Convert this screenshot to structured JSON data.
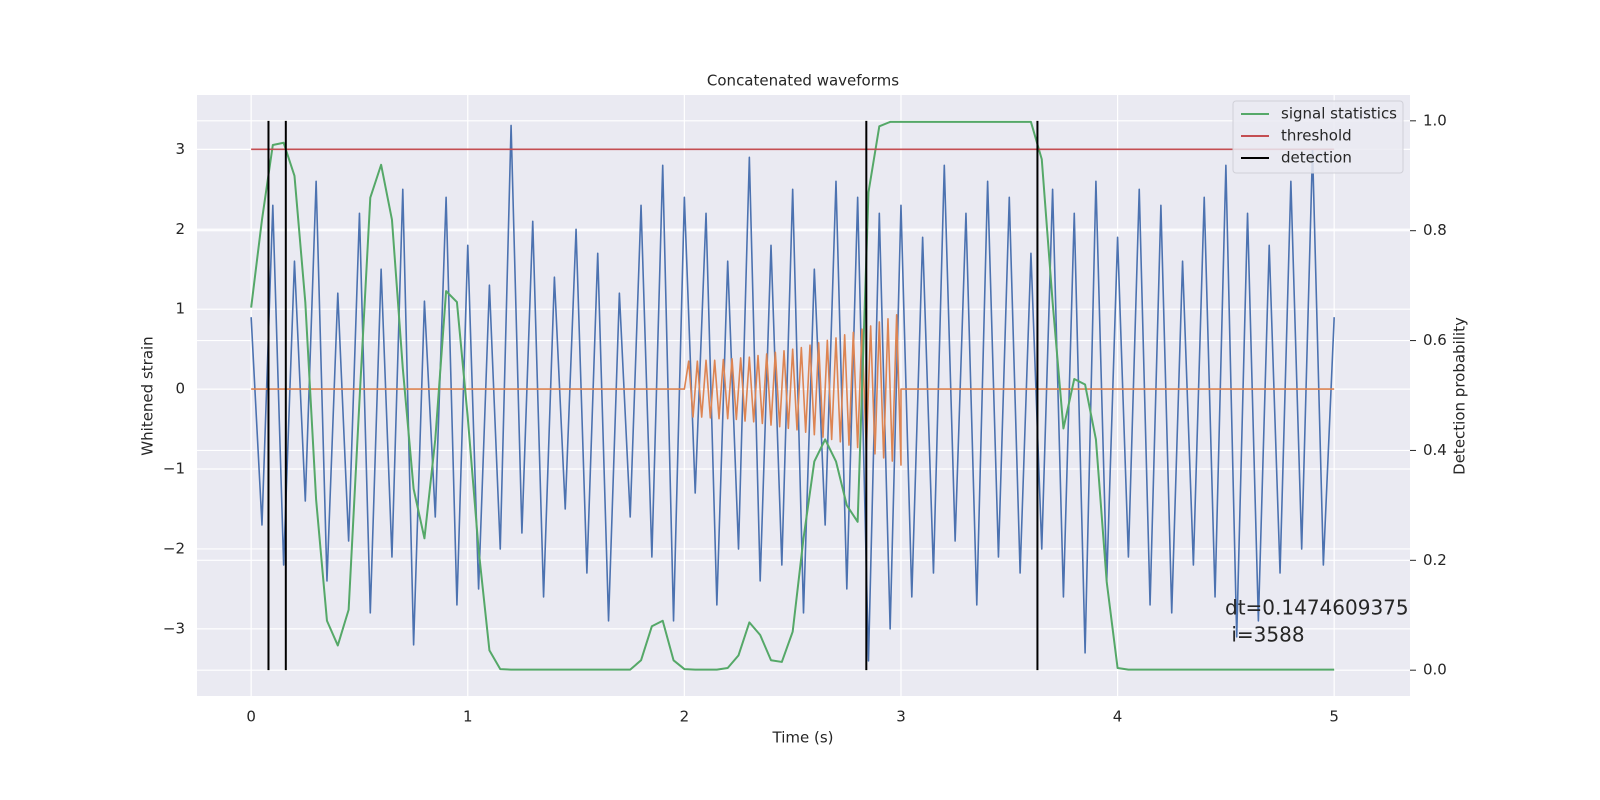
{
  "chart_data": {
    "type": "line",
    "title": "Concatenated waveforms",
    "xlabel": "Time (s)",
    "ylabel": "Whitened strain",
    "y2label": "Detection probability",
    "xlim": [
      -0.25,
      5.35
    ],
    "ylim": [
      -3.84,
      3.68
    ],
    "y2lim": [
      -0.047,
      1.047
    ],
    "xticks": [
      0,
      1,
      2,
      3,
      4,
      5
    ],
    "yticks": [
      {
        "value": -3,
        "label": "−3"
      },
      {
        "value": -2,
        "label": "−2"
      },
      {
        "value": -1,
        "label": "−1"
      },
      0,
      1,
      2,
      3
    ],
    "y2ticks": [
      {
        "value": 0,
        "label": "0.0"
      },
      0.2,
      0.4,
      0.6,
      0.8,
      {
        "value": 1,
        "label": "1.0"
      }
    ],
    "grid": true,
    "legend": "upper right",
    "x": [
      0,
      0.05,
      0.1,
      0.15,
      0.2,
      0.25,
      0.3,
      0.35,
      0.4,
      0.45,
      0.5,
      0.55,
      0.6,
      0.65,
      0.7,
      0.75,
      0.8,
      0.85,
      0.9,
      0.95,
      1,
      1.05,
      1.1,
      1.15,
      1.2,
      1.25,
      1.3,
      1.35,
      1.4,
      1.45,
      1.5,
      1.55,
      1.6,
      1.65,
      1.7,
      1.75,
      1.8,
      1.85,
      1.9,
      1.95,
      2,
      2.05,
      2.1,
      2.15,
      2.2,
      2.25,
      2.3,
      2.35,
      2.4,
      2.45,
      2.5,
      2.55,
      2.6,
      2.65,
      2.7,
      2.75,
      2.8,
      2.85,
      2.9,
      2.95,
      3,
      3.05,
      3.1,
      3.15,
      3.2,
      3.25,
      3.3,
      3.35,
      3.4,
      3.45,
      3.5,
      3.55,
      3.6,
      3.65,
      3.7,
      3.75,
      3.8,
      3.85,
      3.9,
      3.95,
      4,
      4.05,
      4.1,
      4.15,
      4.2,
      4.25,
      4.3,
      4.35,
      4.4,
      4.45,
      4.5,
      4.55,
      4.6,
      4.65,
      4.7,
      4.75,
      4.8,
      4.85,
      4.9,
      4.95,
      5
    ],
    "series": [
      {
        "color": "#4c72b0",
        "values": [
          0.9,
          -1.7,
          2.3,
          -2.2,
          1.6,
          -1.4,
          2.6,
          -2.4,
          1.2,
          -1.9,
          2.2,
          -2.8,
          1.5,
          -2.1,
          2.5,
          -3.2,
          1.1,
          -1.6,
          2.4,
          -2.7,
          1.8,
          -2.5,
          1.3,
          -2.0,
          3.3,
          -1.8,
          2.1,
          -2.6,
          1.4,
          -1.5,
          2.0,
          -2.3,
          1.7,
          -2.9,
          1.2,
          -1.6,
          2.3,
          -2.1,
          2.8,
          -2.9,
          2.4,
          -1.3,
          2.2,
          -2.7,
          1.6,
          -2.0,
          2.9,
          -2.4,
          1.8,
          -2.2,
          2.5,
          -2.8,
          1.5,
          -1.7,
          2.6,
          -2.5,
          2.4,
          -3.4,
          2.2,
          -3.0,
          2.3,
          -2.6,
          1.9,
          -2.3,
          2.8,
          -1.9,
          2.2,
          -2.7,
          2.6,
          -2.1,
          2.4,
          -2.3,
          1.7,
          -2.0,
          2.5,
          -2.6,
          2.2,
          -3.3,
          2.6,
          -2.4,
          1.9,
          -2.1,
          2.5,
          -2.7,
          2.3,
          -2.8,
          1.6,
          -2.2,
          2.4,
          -2.6,
          2.8,
          -3.1,
          2.2,
          -2.9,
          1.8,
          -2.3,
          2.6,
          -2.0,
          3.0,
          -2.2,
          0.9
        ]
      },
      {
        "color": "#dd8452",
        "x": [
          0,
          2,
          2.02,
          2.04,
          2.06,
          2.08,
          2.1,
          2.12,
          2.14,
          2.16,
          2.18,
          2.2,
          2.22,
          2.24,
          2.26,
          2.28,
          2.3,
          2.32,
          2.34,
          2.36,
          2.38,
          2.4,
          2.42,
          2.44,
          2.46,
          2.48,
          2.5,
          2.52,
          2.54,
          2.56,
          2.58,
          2.6,
          2.62,
          2.64,
          2.66,
          2.68,
          2.7,
          2.72,
          2.74,
          2.76,
          2.78,
          2.8,
          2.82,
          2.84,
          2.86,
          2.88,
          2.9,
          2.92,
          2.94,
          2.96,
          2.98,
          3,
          3,
          5
        ],
        "values": [
          0,
          0,
          0.35,
          -0.35,
          0.35,
          -0.35,
          0.36,
          -0.36,
          0.36,
          -0.37,
          0.37,
          -0.37,
          0.38,
          -0.38,
          0.39,
          -0.4,
          0.4,
          -0.41,
          0.42,
          -0.43,
          0.44,
          -0.45,
          0.46,
          -0.47,
          0.48,
          -0.49,
          0.5,
          -0.51,
          0.52,
          -0.54,
          0.55,
          -0.57,
          0.58,
          -0.6,
          0.61,
          -0.63,
          0.64,
          -0.66,
          0.68,
          -0.7,
          0.71,
          -0.73,
          0.75,
          -0.77,
          0.79,
          -0.81,
          0.84,
          -0.86,
          0.88,
          -0.9,
          0.93,
          -0.95,
          0,
          0
        ]
      },
      {
        "name": "signal statistics",
        "color": "#55a868",
        "axis": "y2",
        "values": [
          0.66,
          0.82,
          0.956,
          0.96,
          0.9,
          0.67,
          0.31,
          0.09,
          0.045,
          0.11,
          0.49,
          0.86,
          0.92,
          0.82,
          0.55,
          0.33,
          0.24,
          0.42,
          0.69,
          0.67,
          0.46,
          0.22,
          0.036,
          0.002,
          0.001,
          0.001,
          0.001,
          0.001,
          0.001,
          0.001,
          0.001,
          0.001,
          0.001,
          0.001,
          0.001,
          0.001,
          0.018,
          0.08,
          0.09,
          0.018,
          0.002,
          0.001,
          0.001,
          0.001,
          0.004,
          0.027,
          0.087,
          0.064,
          0.018,
          0.015,
          0.07,
          0.24,
          0.38,
          0.42,
          0.38,
          0.3,
          0.27,
          0.87,
          0.99,
          0.998,
          0.998,
          0.998,
          0.998,
          0.998,
          0.998,
          0.998,
          0.998,
          0.998,
          0.998,
          0.998,
          0.998,
          0.998,
          0.998,
          0.93,
          0.67,
          0.44,
          0.53,
          0.52,
          0.42,
          0.16,
          0.004,
          0.001,
          0.001,
          0.001,
          0.001,
          0.001,
          0.001,
          0.001,
          0.001,
          0.001,
          0.001,
          0.001,
          0.001,
          0.001,
          0.001,
          0.001,
          0.001,
          0.001,
          0.001,
          0.001,
          0.001
        ]
      },
      {
        "name": "threshold",
        "color": "#c44e52",
        "x": [
          0,
          5
        ],
        "values": [
          3,
          3
        ]
      },
      {
        "name": "detection",
        "color": "#000000",
        "kind": "vline",
        "axis": "y2",
        "x": [
          0.08,
          0.16,
          2.84,
          3.63
        ],
        "values": [
          1,
          1,
          1,
          1
        ]
      }
    ],
    "annotation": [
      "dt=0.1474609375",
      " i=3588"
    ]
  }
}
